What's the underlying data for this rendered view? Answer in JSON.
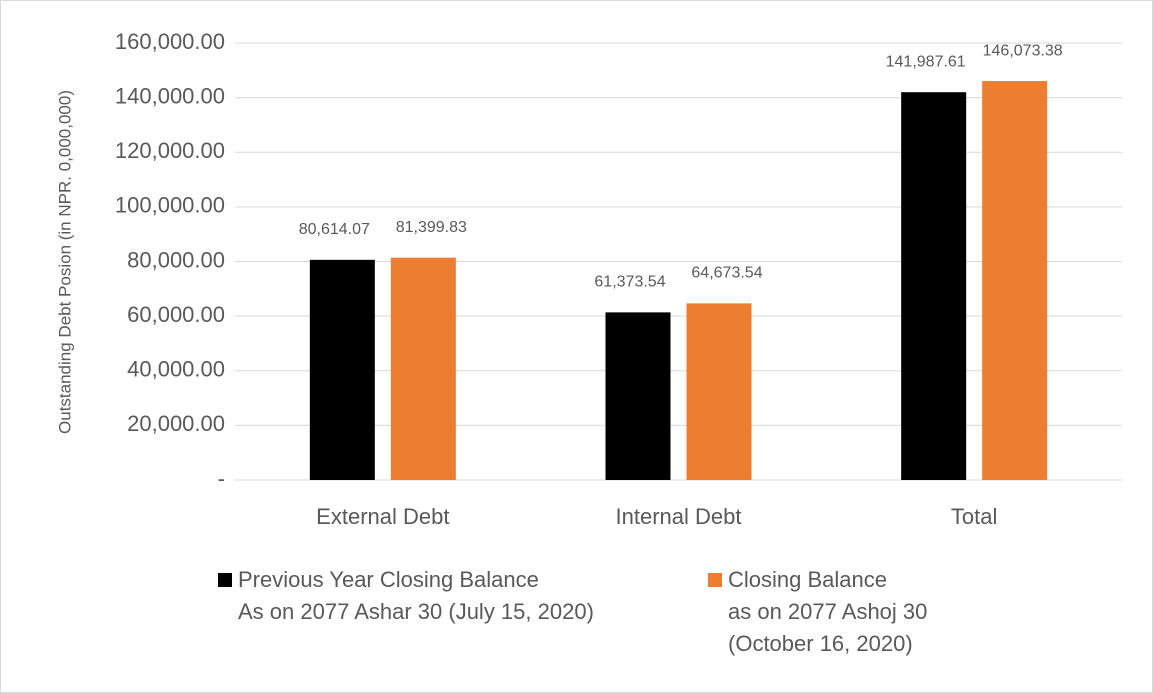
{
  "chart_data": {
    "type": "bar",
    "y_label": "Outstanding Debt Posion (in NPR. 0,000,000)",
    "categories": [
      "External Debt",
      "Internal Debt",
      "Total"
    ],
    "series": [
      {
        "name": "Previous Year Closing Balance\nAs on 2077 Ashar 30 (July 15, 2020)",
        "color": "#000000",
        "values": [
          80614.07,
          61373.54,
          141987.61
        ],
        "value_labels": [
          "80,614.07",
          "61,373.54",
          "141,987.61"
        ]
      },
      {
        "name": "Closing Balance\nas on 2077 Ashoj 30\n(October 16, 2020)",
        "color": "#ed7d31",
        "values": [
          81399.83,
          64673.54,
          146073.38
        ],
        "value_labels": [
          "81,399.83",
          "64,673.54",
          "146,073.38"
        ]
      }
    ],
    "ylim": [
      0,
      160000
    ],
    "yticks": [
      {
        "value": 0,
        "label": "-"
      },
      {
        "value": 20000,
        "label": "20,000.00"
      },
      {
        "value": 40000,
        "label": "40,000.00"
      },
      {
        "value": 60000,
        "label": "60,000.00"
      },
      {
        "value": 80000,
        "label": "80,000.00"
      },
      {
        "value": 100000,
        "label": "100,000.00"
      },
      {
        "value": 120000,
        "label": "120,000.00"
      },
      {
        "value": 140000,
        "label": "140,000.00"
      },
      {
        "value": 160000,
        "label": "160,000.00"
      }
    ],
    "grid": true,
    "legend": "bottom"
  }
}
